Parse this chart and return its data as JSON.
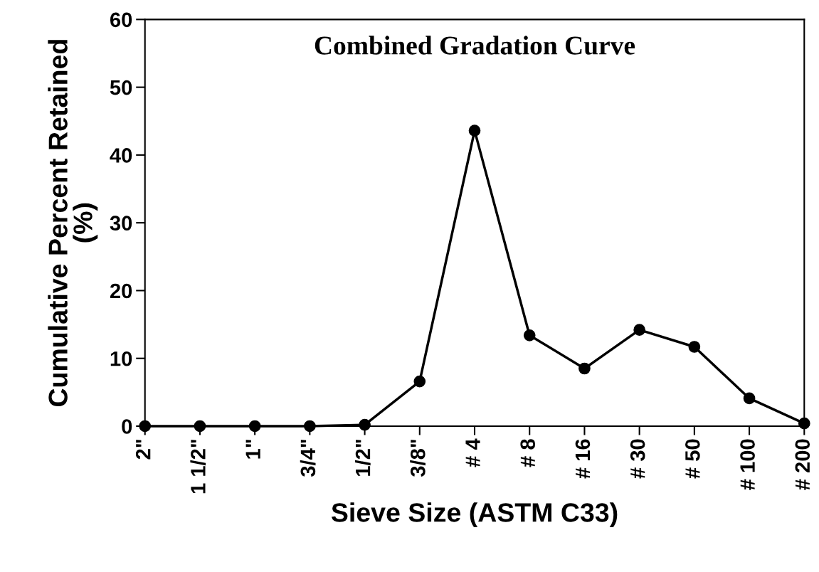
{
  "chart_data": {
    "type": "line",
    "title": "Combined Gradation Curve",
    "xlabel": "Sieve Size (ASTM C33)",
    "ylabel": "Cumulative Percent Retained\n(%)",
    "categories": [
      "2\"",
      "1 1/2\"",
      "1\"",
      "3/4\"",
      "1/2\"",
      "3/8\"",
      "# 4",
      "# 8",
      "# 16",
      "# 30",
      "# 50",
      "# 100",
      "# 200"
    ],
    "values": [
      0,
      0,
      0,
      0,
      0.2,
      6.6,
      43.6,
      13.4,
      8.5,
      14.2,
      11.7,
      4.1,
      0.4
    ],
    "color": "#000000",
    "marker": "circle",
    "line_style": "solid",
    "ylim": [
      0,
      60
    ],
    "yticks": [
      0,
      10,
      20,
      30,
      40,
      50,
      60
    ],
    "grid": false,
    "legend": false
  }
}
